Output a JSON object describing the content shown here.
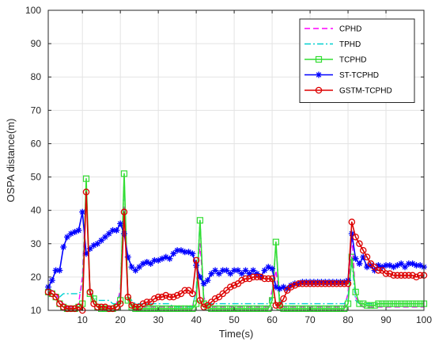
{
  "chart_data": {
    "type": "line",
    "xlabel": "Time(s)",
    "ylabel": "OSPA distance(m)",
    "xlim": [
      1,
      100
    ],
    "ylim": [
      10,
      100
    ],
    "xticks": [
      10,
      20,
      30,
      40,
      50,
      60,
      70,
      80,
      90,
      100
    ],
    "yticks": [
      10,
      20,
      30,
      40,
      50,
      60,
      70,
      80,
      90,
      100
    ],
    "grid": true,
    "legend_position": "top-right",
    "series": [
      {
        "name": "CPHD",
        "color": "#ff00ff",
        "style": "dashed",
        "marker": "none",
        "x": [
          1,
          2,
          3,
          4,
          5,
          6,
          7,
          8,
          9,
          10,
          11,
          12,
          13,
          14,
          15,
          16,
          17,
          18,
          19,
          20,
          21,
          22,
          23,
          24,
          25,
          26,
          27,
          28,
          29,
          30,
          31,
          32,
          33,
          34,
          35,
          36,
          37,
          38,
          39,
          40,
          41,
          42,
          43,
          44,
          45,
          46,
          47,
          48,
          49,
          50,
          51,
          52,
          53,
          54,
          55,
          56,
          57,
          58,
          59,
          60,
          61,
          62,
          63,
          64,
          65,
          66,
          67,
          68,
          69,
          70,
          71,
          72,
          73,
          74,
          75,
          76,
          77,
          78,
          79,
          80,
          81,
          82,
          83,
          84,
          85,
          86,
          87,
          88,
          89,
          90,
          91,
          92,
          93,
          94,
          95,
          96,
          97,
          98,
          99,
          100
        ],
        "y": [
          16,
          16,
          15,
          13,
          12,
          11,
          11,
          11,
          12,
          20,
          47,
          16,
          12,
          11,
          11,
          11,
          11,
          11,
          12,
          16,
          41,
          14,
          12,
          11,
          11,
          11,
          11,
          11,
          11,
          11,
          11,
          11,
          11,
          11,
          11,
          11,
          11,
          11,
          11,
          16,
          30,
          14,
          11,
          11,
          11,
          11,
          11,
          11,
          11,
          11,
          11,
          11,
          11,
          11,
          11,
          11,
          11,
          11,
          11,
          16,
          22,
          13,
          11,
          11,
          11,
          11,
          11,
          11,
          11,
          11,
          11,
          11,
          11,
          11,
          11,
          11,
          11,
          11,
          11,
          15,
          33,
          14,
          12,
          11,
          11,
          11,
          11,
          11,
          11,
          11,
          11,
          11,
          11,
          11,
          11,
          11,
          11,
          11,
          11,
          11
        ]
      },
      {
        "name": "TPHD",
        "color": "#00d0d0",
        "style": "dashdot",
        "marker": "none",
        "x": [
          1,
          2,
          3,
          4,
          5,
          6,
          7,
          8,
          9,
          10,
          11,
          12,
          13,
          14,
          15,
          16,
          17,
          18,
          19,
          20,
          21,
          22,
          23,
          24,
          25,
          26,
          27,
          28,
          29,
          30,
          31,
          32,
          33,
          34,
          35,
          36,
          37,
          38,
          39,
          40,
          41,
          42,
          43,
          44,
          45,
          46,
          47,
          48,
          49,
          50,
          51,
          52,
          53,
          54,
          55,
          56,
          57,
          58,
          59,
          60,
          61,
          62,
          63,
          64,
          65,
          66,
          67,
          68,
          69,
          70,
          71,
          72,
          73,
          74,
          75,
          76,
          77,
          78,
          79,
          80,
          81,
          82,
          83,
          84,
          85,
          86,
          87,
          88,
          89,
          90,
          91,
          92,
          93,
          94,
          95,
          96,
          97,
          98,
          99,
          100
        ],
        "y": [
          15,
          15,
          14,
          14,
          15,
          15,
          15,
          15,
          15,
          16,
          48,
          15,
          14,
          13,
          13,
          13,
          13,
          12,
          12,
          15,
          50,
          14,
          13,
          12,
          12,
          12,
          12,
          12,
          12,
          12,
          12,
          12,
          12,
          11,
          11,
          11,
          11,
          11,
          11,
          16,
          37,
          13,
          12,
          12,
          12,
          12,
          12,
          12,
          12,
          12,
          12,
          12,
          12,
          12,
          12,
          12,
          12,
          12,
          12,
          14,
          30,
          13,
          12,
          12,
          12,
          12,
          12,
          12,
          12,
          12,
          12,
          12,
          12,
          12,
          12,
          12,
          12,
          12,
          12,
          14,
          25,
          13,
          12,
          12,
          12,
          12,
          12,
          12,
          12,
          12,
          12,
          12,
          12,
          12,
          12,
          12,
          12,
          12,
          12,
          12
        ]
      },
      {
        "name": "TCPHD",
        "color": "#33dd33",
        "style": "solid",
        "marker": "square",
        "x": [
          1,
          2,
          3,
          4,
          5,
          6,
          7,
          8,
          9,
          10,
          11,
          12,
          13,
          14,
          15,
          16,
          17,
          18,
          19,
          20,
          21,
          22,
          23,
          24,
          25,
          26,
          27,
          28,
          29,
          30,
          31,
          32,
          33,
          34,
          35,
          36,
          37,
          38,
          39,
          40,
          41,
          42,
          43,
          44,
          45,
          46,
          47,
          48,
          49,
          50,
          51,
          52,
          53,
          54,
          55,
          56,
          57,
          58,
          59,
          60,
          61,
          62,
          63,
          64,
          65,
          66,
          67,
          68,
          69,
          70,
          71,
          72,
          73,
          74,
          75,
          76,
          77,
          78,
          79,
          80,
          81,
          82,
          83,
          84,
          85,
          86,
          87,
          88,
          89,
          90,
          91,
          92,
          93,
          94,
          95,
          96,
          97,
          98,
          99,
          100
        ],
        "y": [
          15.5,
          15,
          14,
          12,
          11,
          10.5,
          10.5,
          10.5,
          11,
          12,
          49.5,
          15,
          13.5,
          11,
          10.5,
          10.5,
          10.5,
          10.5,
          11,
          13,
          51,
          13,
          11,
          10.5,
          10.5,
          10.5,
          10.5,
          10.5,
          10.5,
          10.5,
          10.5,
          10.5,
          10.5,
          10.5,
          10.5,
          10.5,
          10.5,
          10.5,
          10.5,
          12,
          37,
          12,
          11,
          10.5,
          10.5,
          10.5,
          10.5,
          10.5,
          10.5,
          10.5,
          10.5,
          10.5,
          10.5,
          10.5,
          10.5,
          10.5,
          10.5,
          10.5,
          10.5,
          13,
          30.5,
          11,
          10.5,
          10.5,
          10.5,
          10.5,
          10.5,
          10.5,
          10.5,
          10.5,
          10.5,
          10.5,
          10.5,
          10.5,
          10.5,
          10.5,
          10.5,
          10.5,
          10.5,
          12,
          26,
          15.5,
          12,
          12,
          11.5,
          11.5,
          11.5,
          12,
          12,
          12,
          12,
          12,
          12,
          12,
          12,
          12,
          12,
          12,
          12,
          12
        ]
      },
      {
        "name": "ST-TCPHD",
        "color": "#0000ff",
        "style": "solid",
        "marker": "star",
        "x": [
          1,
          2,
          3,
          4,
          5,
          6,
          7,
          8,
          9,
          10,
          11,
          12,
          13,
          14,
          15,
          16,
          17,
          18,
          19,
          20,
          21,
          22,
          23,
          24,
          25,
          26,
          27,
          28,
          29,
          30,
          31,
          32,
          33,
          34,
          35,
          36,
          37,
          38,
          39,
          40,
          41,
          42,
          43,
          44,
          45,
          46,
          47,
          48,
          49,
          50,
          51,
          52,
          53,
          54,
          55,
          56,
          57,
          58,
          59,
          60,
          61,
          62,
          63,
          64,
          65,
          66,
          67,
          68,
          69,
          70,
          71,
          72,
          73,
          74,
          75,
          76,
          77,
          78,
          79,
          80,
          81,
          82,
          83,
          84,
          85,
          86,
          87,
          88,
          89,
          90,
          91,
          92,
          93,
          94,
          95,
          96,
          97,
          98,
          99,
          100
        ],
        "y": [
          17,
          19,
          22,
          22,
          29,
          32,
          33,
          33.5,
          34,
          39.5,
          27,
          28.5,
          29.5,
          30,
          31,
          32,
          33,
          34,
          34,
          36,
          33,
          26,
          23,
          22,
          23,
          24,
          24.5,
          24,
          25,
          25,
          25.5,
          26,
          25.5,
          27,
          28,
          28,
          27.5,
          27.5,
          27,
          23.5,
          20,
          18,
          19,
          21,
          22,
          21,
          22,
          22,
          21,
          22,
          22,
          21,
          22,
          21,
          22,
          21,
          20,
          22,
          23,
          22.5,
          17,
          16.5,
          17,
          16.5,
          17.5,
          18,
          18,
          18.5,
          18.5,
          18.5,
          18.5,
          18.5,
          18.5,
          18.5,
          18.5,
          18.5,
          18.5,
          18.5,
          18.5,
          19,
          33,
          25.5,
          24,
          26,
          23,
          23.5,
          22,
          23.5,
          23,
          23.5,
          23.5,
          23,
          23.5,
          24,
          23,
          24,
          24,
          23.5,
          23.5,
          23
        ]
      },
      {
        "name": "GSTM-TCPHD",
        "color": "#dd0000",
        "style": "solid",
        "marker": "circle",
        "x": [
          1,
          2,
          3,
          4,
          5,
          6,
          7,
          8,
          9,
          10,
          11,
          12,
          13,
          14,
          15,
          16,
          17,
          18,
          19,
          20,
          21,
          22,
          23,
          24,
          25,
          26,
          27,
          28,
          29,
          30,
          31,
          32,
          33,
          34,
          35,
          36,
          37,
          38,
          39,
          40,
          41,
          42,
          43,
          44,
          45,
          46,
          47,
          48,
          49,
          50,
          51,
          52,
          53,
          54,
          55,
          56,
          57,
          58,
          59,
          60,
          61,
          62,
          63,
          64,
          65,
          66,
          67,
          68,
          69,
          70,
          71,
          72,
          73,
          74,
          75,
          76,
          77,
          78,
          79,
          80,
          81,
          82,
          83,
          84,
          85,
          86,
          87,
          88,
          89,
          90,
          91,
          92,
          93,
          94,
          95,
          96,
          97,
          98,
          99,
          100
        ],
        "y": [
          15.5,
          15,
          14,
          12,
          11,
          10.5,
          10.5,
          10.5,
          11,
          10,
          45.5,
          15.5,
          12,
          11,
          11,
          11,
          10.5,
          10.5,
          11,
          12,
          39.5,
          14,
          11.5,
          11,
          11,
          12,
          12.5,
          12.5,
          13.5,
          14,
          14,
          14.5,
          14,
          14,
          14.5,
          15,
          16,
          16,
          15,
          25,
          13,
          11,
          11.5,
          12.5,
          13.5,
          14,
          15,
          16,
          17,
          17.5,
          18,
          19,
          19.5,
          19.5,
          20,
          20,
          20,
          19.5,
          19.5,
          19.5,
          11.5,
          11.5,
          13.5,
          16,
          17,
          17.5,
          18,
          18,
          18,
          18,
          18,
          18,
          18,
          18,
          18,
          18,
          18,
          18,
          18,
          18,
          36.5,
          32,
          30,
          28,
          26,
          24,
          23,
          22,
          22,
          21,
          21,
          20.5,
          20.5,
          20.5,
          20.5,
          20.5,
          20.5,
          20,
          20.5,
          20.5
        ]
      }
    ]
  }
}
